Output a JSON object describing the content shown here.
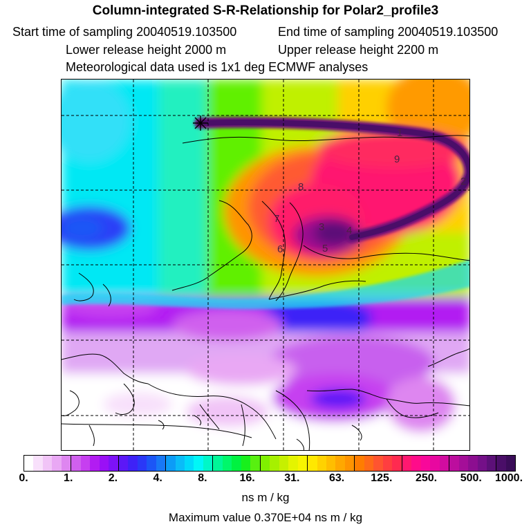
{
  "header": {
    "title": "Column-integrated S-R-Relationship for Polar2_profile3",
    "start_time": "Start time of sampling 20040519.103500",
    "end_time": "End time of sampling 20040519.103500",
    "lower_height": "Lower release height 2000 m",
    "upper_height": "Upper release height 2200 m",
    "met_data": "Meteorological data used is 1x1 deg ECMWF analyses"
  },
  "map": {
    "trajectory_labels": [
      "1",
      "2",
      "3",
      "4",
      "5",
      "6",
      "7",
      "8",
      "9"
    ],
    "release_marker": "release-point-asterisk"
  },
  "colorbar": {
    "tick_labels": [
      "0.",
      "1.",
      "2.",
      "4.",
      "8.",
      "16.",
      "31.",
      "63.",
      "125.",
      "250.",
      "500.",
      "1000."
    ],
    "colors": [
      "#ffffff",
      "#f8e0fb",
      "#f1c4f7",
      "#e9a8f4",
      "#de86f0",
      "#d060ee",
      "#c63ff0",
      "#b21cf2",
      "#9a10f6",
      "#7d12f8",
      "#5c18f7",
      "#3e22f7",
      "#2a38f7",
      "#1c56f6",
      "#1878f6",
      "#0c9cf7",
      "#0abcf8",
      "#00dafa",
      "#00f7f7",
      "#00f7c8",
      "#00f798",
      "#00f76a",
      "#00f240",
      "#18f01c",
      "#58f010",
      "#80f000",
      "#a6f000",
      "#c6f000",
      "#e4f400",
      "#f8f400",
      "#ffe800",
      "#ffd200",
      "#ffbe00",
      "#ffa800",
      "#ff9400",
      "#ff7d00",
      "#ff6a18",
      "#ff5430",
      "#ff3e40",
      "#ff2a50",
      "#ff1870",
      "#ff0c8a",
      "#f8089a",
      "#e808a0",
      "#d20ca0",
      "#bc0e9e",
      "#a40e98",
      "#8c0e90",
      "#741088",
      "#5c1078",
      "#4a0e68",
      "#3a0c58"
    ]
  },
  "units": "ns m / kg",
  "max_value": "Maximum value  0.370E+04 ns m / kg"
}
